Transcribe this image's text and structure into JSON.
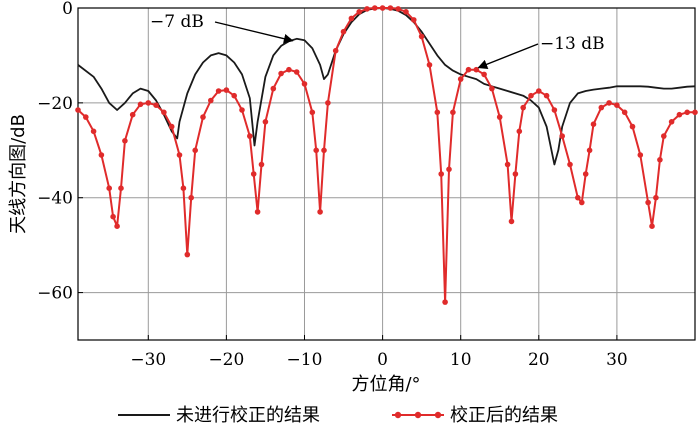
{
  "chart_data": {
    "type": "line",
    "xlabel": "方位角/°",
    "ylabel": "天线方向图/dB",
    "xlim": [
      -39,
      40
    ],
    "ylim": [
      -70,
      0
    ],
    "xticks": [
      -30,
      -20,
      -10,
      0,
      10,
      20,
      30
    ],
    "yticks": [
      0,
      -20,
      -40,
      -60
    ],
    "xtick_labels": [
      "−30",
      "−20",
      "−10",
      "0",
      "10",
      "20",
      "30"
    ],
    "ytick_labels": [
      "0",
      "−20",
      "−40",
      "−60"
    ],
    "grid": true,
    "legend_position": "bottom",
    "annotations": [
      {
        "text": "−7 dB",
        "target": [
          -11,
          -6.5
        ]
      },
      {
        "text": "−13 dB",
        "target": [
          11.5,
          -13
        ]
      }
    ],
    "series": [
      {
        "name": "未进行校正的结果",
        "color": "#1a1a1a",
        "marker": false,
        "x": [
          -39,
          -37,
          -36,
          -35,
          -34,
          -33,
          -32,
          -31,
          -30,
          -29,
          -28,
          -27,
          -26.3,
          -26,
          -25,
          -24,
          -23,
          -22,
          -21,
          -20,
          -19,
          -18,
          -17,
          -16.4,
          -16,
          -15,
          -14,
          -13,
          -12,
          -11,
          -10,
          -9,
          -8,
          -7.5,
          -7,
          -6,
          -5,
          -4,
          -3,
          -2,
          -1,
          0,
          1,
          2,
          3,
          4,
          5,
          6,
          7,
          8,
          9,
          10,
          11,
          12,
          13,
          14,
          15,
          16,
          17,
          18,
          19,
          20,
          21,
          22,
          22.5,
          23,
          24,
          25,
          26,
          27,
          28,
          29,
          30,
          31,
          32,
          33,
          34,
          35,
          36,
          37,
          38,
          39,
          40
        ],
        "y": [
          -12,
          -14.5,
          -17,
          -20,
          -21.5,
          -20,
          -18,
          -17,
          -17.5,
          -19.5,
          -22.5,
          -26,
          -27.5,
          -24,
          -18,
          -14,
          -11.5,
          -10,
          -9.5,
          -10,
          -11.5,
          -14,
          -19,
          -29,
          -24,
          -14.5,
          -10,
          -8,
          -7,
          -6.5,
          -6.8,
          -8.5,
          -12,
          -15,
          -14,
          -9,
          -5.5,
          -3,
          -1.3,
          -0.4,
          -0.1,
          0,
          -0.2,
          -0.6,
          -1.5,
          -3,
          -5,
          -7.5,
          -10,
          -12,
          -13.2,
          -14,
          -14.5,
          -15,
          -16,
          -16.5,
          -17,
          -17.5,
          -18,
          -18.5,
          -19.5,
          -21,
          -25,
          -33,
          -30,
          -25,
          -20,
          -18,
          -17.5,
          -17.2,
          -17,
          -16.8,
          -16.5,
          -16.5,
          -16.5,
          -16.5,
          -16.6,
          -16.8,
          -17,
          -17,
          -16.8,
          -16.6,
          -16.5
        ]
      },
      {
        "name": "校正后的结果",
        "color": "#e02b2b",
        "marker": true,
        "x": [
          -39,
          -38,
          -37,
          -36,
          -35,
          -34.5,
          -34,
          -33.5,
          -33,
          -32,
          -31,
          -30,
          -29,
          -28,
          -27,
          -26,
          -25.5,
          -25,
          -24.5,
          -24,
          -23,
          -22,
          -21,
          -20,
          -19,
          -18,
          -17,
          -16.5,
          -16,
          -15.5,
          -15,
          -14,
          -13,
          -12,
          -11,
          -10,
          -9,
          -8.5,
          -8,
          -7.5,
          -7,
          -6,
          -5,
          -4,
          -3,
          -2,
          -1,
          0,
          1,
          2,
          3,
          4,
          5,
          6,
          7,
          7.5,
          8,
          8.5,
          9,
          10,
          11,
          12,
          13,
          14,
          15,
          16,
          16.5,
          17,
          17.5,
          18,
          19,
          20,
          21,
          22,
          23,
          24,
          25,
          25.5,
          26,
          26.5,
          27,
          28,
          29,
          30,
          31,
          32,
          33,
          34,
          34.5,
          35,
          35.5,
          36,
          37,
          38,
          39,
          40
        ],
        "y": [
          -21.5,
          -23,
          -26,
          -31,
          -38,
          -44,
          -46,
          -38,
          -28,
          -22.5,
          -20.3,
          -20,
          -20.5,
          -22,
          -25,
          -31,
          -38,
          -52,
          -40,
          -30,
          -23,
          -19.5,
          -17.5,
          -17.3,
          -18.5,
          -21.5,
          -27,
          -35,
          -43,
          -33,
          -24,
          -17,
          -13.8,
          -13,
          -13.5,
          -16,
          -22,
          -30,
          -43,
          -30,
          -20,
          -9,
          -5,
          -2.2,
          -0.8,
          -0.2,
          0,
          0,
          0,
          -0.2,
          -0.8,
          -2.5,
          -6,
          -12,
          -22,
          -35,
          -62,
          -34,
          -22,
          -15,
          -13,
          -13,
          -14,
          -17,
          -23,
          -33,
          -45,
          -35,
          -26,
          -21,
          -18.5,
          -17.5,
          -18.5,
          -21.5,
          -27,
          -33,
          -40,
          -41,
          -35,
          -30,
          -24.5,
          -21,
          -20,
          -20.5,
          -22,
          -25,
          -31,
          -41,
          -46,
          -40,
          -32,
          -27,
          -24,
          -22.5,
          -22,
          -22
        ]
      }
    ]
  }
}
